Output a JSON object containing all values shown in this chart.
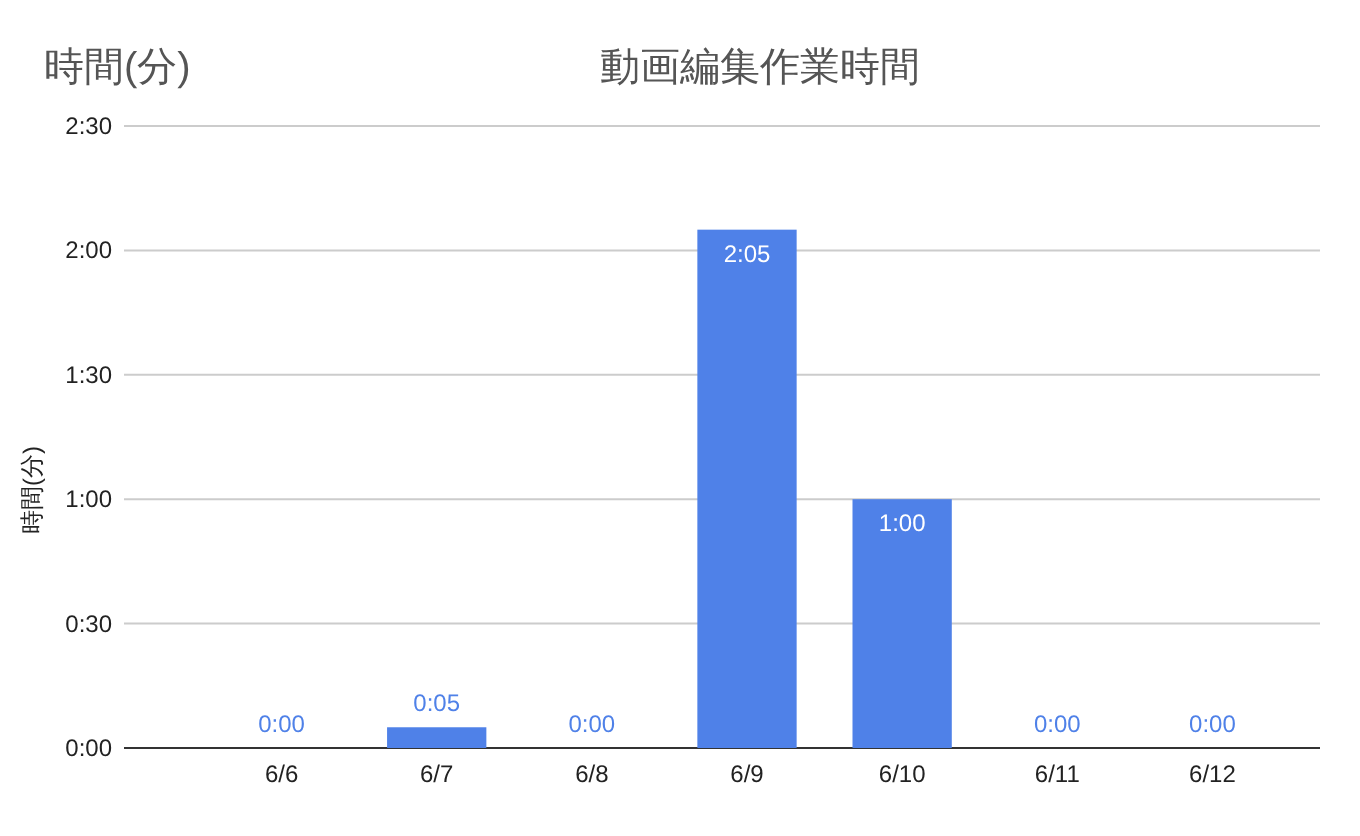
{
  "chart_data": {
    "type": "bar",
    "title": "動画編集作業時間",
    "ylabel": "時間(分)",
    "annotations": [
      "時間(分)"
    ],
    "categories": [
      "6/6",
      "6/7",
      "6/8",
      "6/9",
      "6/10",
      "6/11",
      "6/12"
    ],
    "values": [
      0,
      5,
      0,
      125,
      60,
      0,
      0
    ],
    "value_labels": [
      "0:00",
      "0:05",
      "0:00",
      "2:05",
      "1:00",
      "0:00",
      "0:00"
    ],
    "color": "#4f81e8",
    "ylim": [
      0,
      150
    ],
    "yticks": [
      {
        "value": 0,
        "label": "0:00"
      },
      {
        "value": 30,
        "label": "0:30"
      },
      {
        "value": 60,
        "label": "1:00"
      },
      {
        "value": 90,
        "label": "1:30"
      },
      {
        "value": 120,
        "label": "2:00"
      },
      {
        "value": 150,
        "label": "2:30"
      }
    ],
    "grid": "y"
  }
}
